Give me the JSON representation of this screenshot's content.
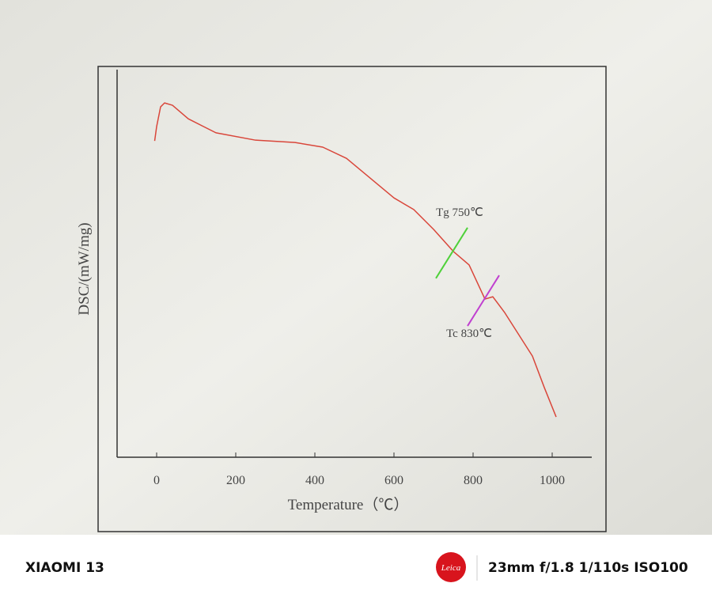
{
  "chart_data": {
    "type": "line",
    "x_label": "Temperature（℃）",
    "y_label": "DSC/(mW/mg)",
    "x": [
      -5,
      0,
      10,
      20,
      40,
      80,
      150,
      250,
      350,
      420,
      480,
      540,
      600,
      650,
      700,
      750,
      790,
      830,
      850,
      880,
      950,
      980,
      1010
    ],
    "series": [
      {
        "color": "#d9463a",
        "values": [
          81.6,
          85.3,
          90.4,
          91.4,
          90.8,
          87.3,
          83.7,
          81.8,
          81.2,
          80,
          77.1,
          72,
          66.9,
          63.9,
          58.8,
          53.1,
          49.6,
          40.8,
          41.4,
          37.3,
          26.1,
          18,
          10.4
        ]
      }
    ],
    "xlim": [
      -100,
      1100
    ],
    "xticks": [
      0,
      200,
      400,
      600,
      800,
      1000
    ],
    "ylim": [
      0,
      100
    ],
    "annotations": [
      {
        "text": "Tg 750℃",
        "x": 750,
        "y": 53.1,
        "color": "#4fd13a"
      },
      {
        "text": "Tc 830℃",
        "x": 830,
        "y": 40.8,
        "color": "#c040d0"
      }
    ]
  },
  "footer": {
    "device": "XIAOMI 13",
    "brand": "Leica",
    "exif": "23mm  f/1.8  1/110s  ISO100"
  }
}
